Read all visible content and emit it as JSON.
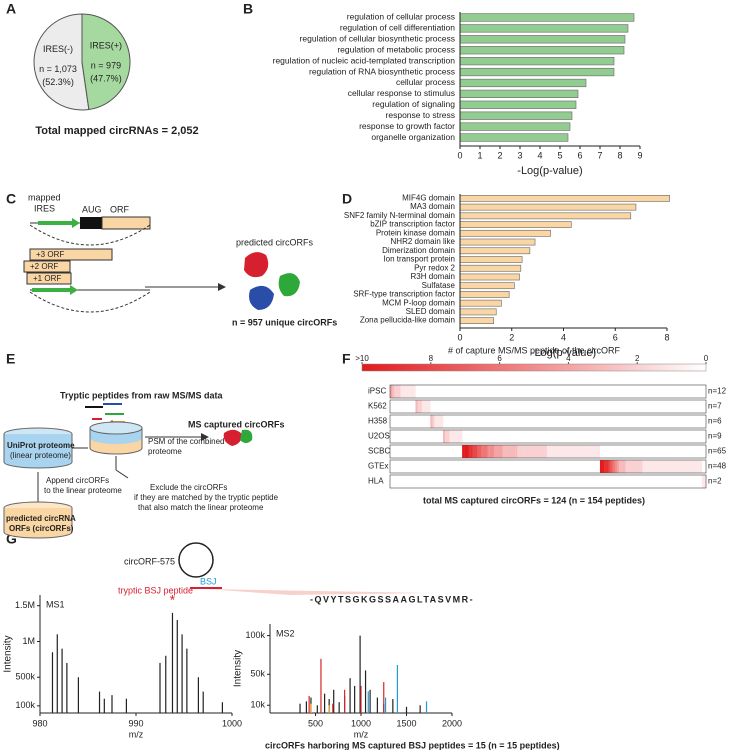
{
  "panel_labels": [
    "A",
    "B",
    "C",
    "D",
    "E",
    "F",
    "G"
  ],
  "chart_data": [
    {
      "type": "pie",
      "title": "Total mapped circRNAs = 2,052",
      "categories": [
        "IRES(-)",
        "IRES(+)"
      ],
      "values": [
        1073,
        979
      ],
      "value_labels": [
        "n = 1,073",
        "n = 979"
      ],
      "percents": [
        52.3,
        47.7
      ],
      "percent_labels": [
        "(52.3%)",
        "(47.7%)"
      ],
      "colors": [
        "#ececec",
        "#a6d9a0"
      ]
    },
    {
      "type": "hbar",
      "xlabel": "-Log(p-value)",
      "categories": [
        "regulation of cellular process",
        "regulation of cell differentiation",
        "regulation of cellular biosynthetic process",
        "regulation of metabolic process",
        "regulation of nucleic acid-templated transcription",
        "regulation of RNA biosynthetic process",
        "cellular process",
        "cellular response to stimulus",
        "regulation of signaling",
        "response to stress",
        "response to growth factor",
        "organelle organization"
      ],
      "values": [
        8.7,
        8.4,
        8.25,
        8.2,
        7.7,
        7.7,
        6.3,
        5.9,
        5.8,
        5.6,
        5.5,
        5.4
      ],
      "color": "#93cc91",
      "xlim": [
        0,
        9
      ],
      "xticks": [
        0,
        1,
        2,
        3,
        4,
        5,
        6,
        7,
        8,
        9
      ]
    },
    {
      "type": "hbar",
      "xlabel": "-Log(p-value)",
      "categories": [
        "MIF4G domain",
        "MA3 domain",
        "SNF2 family N-terminal domain",
        "bZIP transcription factor",
        "Protein kinase domain",
        "NHR2 domain like",
        "Dimerization domain",
        "Ion transport protein",
        "Pyr redox 2",
        "R3H domain",
        "Sulfatase",
        "SRF-type transcription factor",
        "MCM P-loop domain",
        "SLED domain",
        "Zona pellucida-like domain"
      ],
      "values": [
        8.1,
        6.8,
        6.6,
        4.3,
        3.5,
        2.9,
        2.7,
        2.4,
        2.35,
        2.3,
        2.1,
        1.9,
        1.6,
        1.4,
        1.3
      ],
      "color": "#f9d6a4",
      "xlim": [
        0,
        8
      ],
      "xticks": [
        0,
        2,
        4,
        6,
        8
      ]
    },
    {
      "type": "heatmap",
      "title": "total MS captured circORFs = 124 (n = 154 peptides)",
      "colorbar_title": "# of capture MS/MS peptide of the circORF",
      "color": "#e31a1c",
      "clim": [
        0,
        10
      ],
      "colorbar_ticks": [
        {
          "value": 10,
          "label": ">10"
        },
        8,
        6,
        4,
        2,
        0
      ],
      "series": [
        {
          "name": "iPSC",
          "values": [
            4,
            3,
            2,
            2,
            2,
            1,
            1,
            1,
            1,
            1,
            1,
            1
          ]
        },
        {
          "name": "K562",
          "values": [
            3,
            2,
            2,
            1,
            1,
            1,
            1
          ]
        },
        {
          "name": "H358",
          "values": [
            3,
            2,
            1,
            1,
            1,
            1
          ]
        },
        {
          "name": "U2OS",
          "values": [
            3,
            2,
            2,
            1,
            1,
            1,
            1,
            1,
            1
          ]
        },
        {
          "name": "SCBC",
          "values": [
            10,
            10,
            10,
            9,
            9,
            8,
            8,
            7,
            7,
            6,
            6,
            6,
            5,
            5,
            5,
            4,
            4,
            4,
            4,
            3,
            3,
            3,
            3,
            3,
            3,
            3,
            2,
            2,
            2,
            2,
            2,
            2,
            2,
            2,
            2,
            2,
            2,
            2,
            2,
            2,
            1,
            1,
            1,
            1,
            1,
            1,
            1,
            1,
            1,
            1,
            1,
            1,
            1,
            1,
            1,
            1,
            1,
            1,
            1,
            1,
            1,
            1,
            1,
            1,
            1
          ]
        },
        {
          "name": "GTEx",
          "values": [
            10,
            10,
            9,
            9,
            8,
            7,
            6,
            5,
            4,
            3,
            3,
            3,
            2,
            2,
            2,
            2,
            2,
            2,
            2,
            2,
            1,
            1,
            1,
            1,
            1,
            1,
            1,
            1,
            1,
            1,
            1,
            1,
            1,
            1,
            1,
            1,
            1,
            1,
            1,
            1,
            1,
            1,
            1,
            1,
            1,
            1,
            1,
            1
          ]
        },
        {
          "name": "HLA",
          "values": [
            1,
            1
          ]
        }
      ],
      "n": [
        12,
        7,
        6,
        9,
        65,
        48,
        2
      ],
      "n_labels": [
        "n=12",
        "n=7",
        "n=6",
        "n=9",
        "n=65",
        "n=48",
        "n=2"
      ]
    },
    {
      "type": "spectrum",
      "title": "MS1",
      "xlabel": "m/z",
      "ylabel": "Intensity",
      "xlim": [
        980,
        1000
      ],
      "xticks": [
        980,
        990,
        1000
      ],
      "ylim": [
        0,
        1650000
      ],
      "yticks": [
        {
          "value": 100000,
          "label": "100k"
        },
        {
          "value": 500000,
          "label": "500k"
        },
        {
          "value": 1000000,
          "label": "1M"
        },
        {
          "value": 1500000,
          "label": "1.5M"
        }
      ],
      "annotation": {
        "text": "*",
        "x": 993.8,
        "color": "#e02020"
      },
      "series": [
        {
          "color": "#222222",
          "x": [
            981.3,
            981.8,
            982.3,
            982.8,
            984,
            986.2,
            986.7,
            987.5,
            989,
            992.5,
            993.1,
            993.8,
            994.3,
            994.8,
            995.3,
            996.5,
            997,
            999
          ],
          "values": [
            850000,
            1100000,
            900000,
            700000,
            500000,
            300000,
            200000,
            250000,
            200000,
            700000,
            800000,
            1400000,
            1300000,
            1100000,
            900000,
            500000,
            300000,
            150000
          ]
        }
      ]
    },
    {
      "type": "spectrum",
      "title": "MS2",
      "xlabel": "m/z",
      "ylabel": "Intensity",
      "xlim": [
        0,
        2000
      ],
      "xticks": [
        500,
        1000,
        1500,
        2000
      ],
      "ylim": [
        0,
        115000
      ],
      "yticks": [
        {
          "value": 10000,
          "label": "10k"
        },
        {
          "value": 50000,
          "label": "50k"
        },
        {
          "value": 100000,
          "label": "100k"
        }
      ],
      "sequence": "-QVYTSGKGSSAAGLTASVMR-",
      "series": [
        {
          "color": "#222222",
          "x": [
            330,
            400,
            450,
            520,
            600,
            650,
            700,
            760,
            820,
            880,
            930,
            990,
            1050,
            1100,
            1180,
            1250,
            1350,
            1500,
            1650
          ],
          "values": [
            12000,
            15000,
            20000,
            10000,
            25000,
            18000,
            30000,
            14000,
            22000,
            45000,
            35000,
            100000,
            55000,
            30000,
            20000,
            12000,
            18000,
            8000,
            10000
          ]
        },
        {
          "color": "#d62728",
          "x": [
            430,
            560,
            690,
            820,
            1000,
            1250
          ],
          "values": [
            22000,
            70000,
            12000,
            30000,
            35000,
            40000
          ]
        },
        {
          "color": "#1f9bd7",
          "x": [
            1080,
            1270,
            1400,
            1720
          ],
          "values": [
            28000,
            20000,
            62000,
            15000
          ]
        },
        {
          "color": "#f0a030",
          "x": [
            450,
            650
          ],
          "values": [
            12000,
            10000
          ]
        }
      ]
    }
  ],
  "diagram_c": {
    "ires_label": [
      "mapped",
      "IRES"
    ],
    "aug": "AUG",
    "orf": "ORF",
    "frames": [
      "+3 ORF",
      "+2 ORF",
      "+1 ORF"
    ],
    "predicted": "predicted circORFs",
    "count": "n = 957 unique circORFs"
  },
  "diagram_e": {
    "title": "Tryptic peptides from raw MS/MS data",
    "psm": [
      "PSM of the combined",
      "proteome"
    ],
    "captured": "MS captured circORFs",
    "uniprot": [
      "UniProt proteome",
      "(linear proteome)"
    ],
    "append": [
      "Append circORFs",
      "to the linear proteome"
    ],
    "exclude": [
      "Exclude the circORFs",
      "if they are matched by the tryptic peptide",
      "that also match the linear proteome"
    ],
    "predicted": [
      "predicted circRNA",
      "ORFs (circORFs)"
    ]
  },
  "diagram_g": {
    "name": "circORF-575",
    "bsj": "BSJ",
    "peptide": "tryptic BSJ peptide",
    "footer": "circORFs harboring MS captured BSJ peptides = 15 (n = 15 peptides)"
  }
}
